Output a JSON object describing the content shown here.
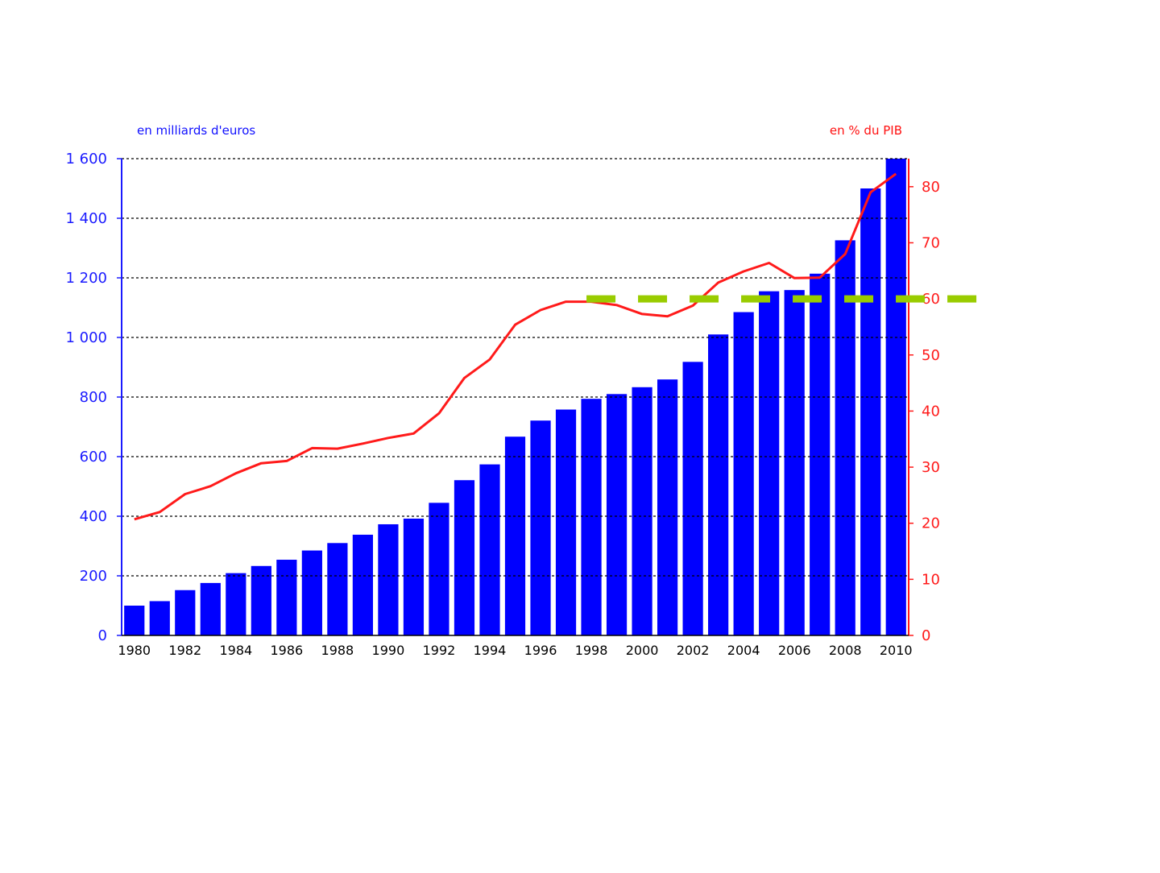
{
  "colors": {
    "bars": "#0000ff",
    "line": "#ff1a1a",
    "left_axis": "#1a1aff",
    "right_axis": "#ff1a1a",
    "threshold": "#99cc00",
    "grid": "#000000"
  },
  "chart_data": {
    "type": "bar",
    "combo": "bar + line (dual y-axis)",
    "ylabel_left": "en milliards d'euros",
    "ylabel_right": "en % du PIB",
    "x": [
      1980,
      1981,
      1982,
      1983,
      1984,
      1985,
      1986,
      1987,
      1988,
      1989,
      1990,
      1991,
      1992,
      1993,
      1994,
      1995,
      1996,
      1997,
      1998,
      1999,
      2000,
      2001,
      2002,
      2003,
      2004,
      2005,
      2006,
      2007,
      2008,
      2009,
      2010
    ],
    "xticks": [
      "1980",
      "1982",
      "1984",
      "1986",
      "1988",
      "1990",
      "1992",
      "1994",
      "1996",
      "1998",
      "2000",
      "2002",
      "2004",
      "2006",
      "2008",
      "2010"
    ],
    "series": [
      {
        "axis": "left",
        "kind": "bar",
        "values": [
          100,
          115,
          152,
          176,
          209,
          233,
          254,
          285,
          310,
          338,
          373,
          392,
          445,
          521,
          574,
          667,
          721,
          758,
          794,
          810,
          833,
          859,
          918,
          1010,
          1085,
          1155,
          1159,
          1214,
          1326,
          1500,
          1600
        ]
      },
      {
        "axis": "right",
        "kind": "line",
        "values": [
          20.7,
          22,
          25.2,
          26.6,
          28.9,
          30.7,
          31.1,
          33.4,
          33.3,
          34.2,
          35.2,
          36,
          39.6,
          45.9,
          49.2,
          55.4,
          58,
          59.5,
          59.5,
          58.9,
          57.3,
          56.9,
          58.8,
          62.9,
          64.9,
          66.4,
          63.7,
          63.8,
          68,
          79,
          82.3
        ]
      },
      {
        "axis": "right",
        "kind": "threshold",
        "value": 60,
        "from_x": 1998,
        "style": "dashed"
      }
    ],
    "ylim_left": [
      0,
      1600
    ],
    "ylim_right": [
      0,
      85
    ],
    "yticks_left": [
      "0",
      "200",
      "400",
      "600",
      "800",
      "1 000",
      "1 200",
      "1 400",
      "1 600"
    ],
    "yticks_left_values": [
      0,
      200,
      400,
      600,
      800,
      1000,
      1200,
      1400,
      1600
    ],
    "yticks_right": [
      "0",
      "10",
      "20",
      "30",
      "40",
      "50",
      "60",
      "70",
      "80"
    ],
    "yticks_right_values": [
      0,
      10,
      20,
      30,
      40,
      50,
      60,
      70,
      80
    ],
    "grid": "horizontal dashed",
    "legend": "none"
  }
}
